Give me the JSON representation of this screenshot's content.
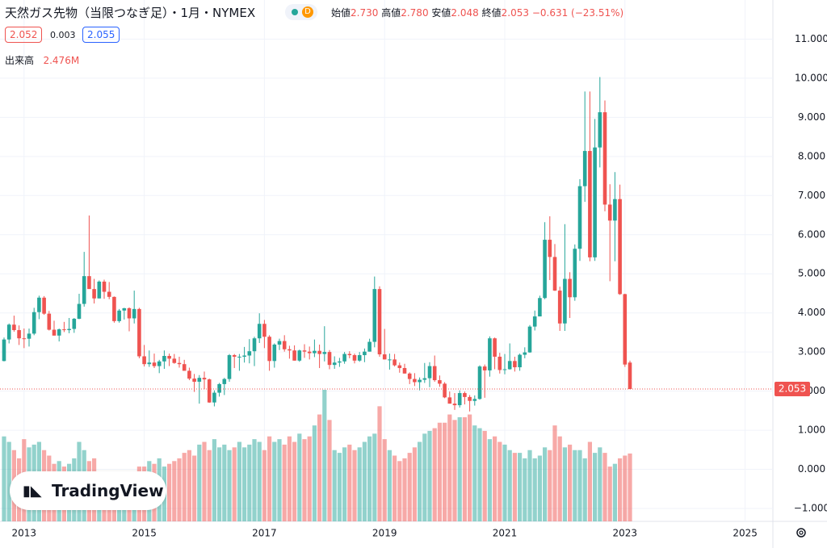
{
  "header": {
    "title": "天然ガス先物（当限つなぎ足）・1月・NYMEX",
    "interval_badge": "D",
    "open_label": "始値",
    "open": "2.730",
    "high_label": "高値",
    "high": "2.780",
    "low_label": "安値",
    "low": "2.048",
    "close_label": "終値",
    "close": "2.053",
    "change": "−0.631 (−23.51%)",
    "sell": "2.052",
    "spread": "0.003",
    "buy": "2.055",
    "volume_label": "出来高",
    "volume_value": "2.476M",
    "logo": "TradingView"
  },
  "chart_data": {
    "type": "candlestick",
    "up_color": "#26a69a",
    "down_color": "#ef5350",
    "grid": true,
    "categories": [
      null,
      null,
      null,
      null,
      "2013",
      null,
      null,
      null,
      null,
      null,
      null,
      null,
      null,
      null,
      null,
      null,
      null,
      null,
      null,
      null,
      null,
      null,
      null,
      null,
      null,
      null,
      null,
      null,
      "2015",
      null,
      null,
      null,
      null,
      null,
      null,
      null,
      null,
      null,
      null,
      null,
      null,
      null,
      null,
      null,
      null,
      null,
      null,
      null,
      null,
      null,
      null,
      null,
      "2017",
      null,
      null,
      null,
      null,
      null,
      null,
      null,
      null,
      null,
      null,
      null,
      null,
      null,
      null,
      null,
      null,
      null,
      null,
      null,
      null,
      null,
      null,
      null,
      "2019",
      null,
      null,
      null,
      null,
      null,
      null,
      null,
      null,
      null,
      null,
      null,
      null,
      null,
      null,
      null,
      null,
      null,
      null,
      null,
      null,
      null,
      null,
      null,
      "2021",
      null,
      null,
      null,
      null,
      null,
      null,
      null,
      null,
      null,
      null,
      null,
      null,
      null,
      null,
      null,
      null,
      null,
      null,
      null,
      null,
      null,
      null,
      null,
      "2023",
      null,
      null,
      null,
      null,
      null,
      null,
      null,
      null,
      null,
      null,
      null,
      null,
      null,
      null,
      null,
      null,
      null,
      null,
      null,
      null,
      null,
      null,
      null,
      "2025",
      null,
      null,
      null,
      null,
      null
    ],
    "open": [
      2.77,
      3.32,
      3.7,
      3.56,
      3.35,
      3.34,
      3.47,
      4.02,
      4.39,
      3.98,
      3.57,
      3.42,
      3.58,
      3.56,
      3.59,
      3.85,
      4.23,
      4.94,
      4.61,
      4.37,
      4.8,
      4.54,
      4.41,
      3.79,
      4.06,
      4.12,
      3.86,
      4.1,
      2.89,
      2.69,
      2.73,
      2.64,
      2.76,
      2.9,
      2.83,
      2.72,
      2.69,
      2.52,
      2.32,
      2.24,
      2.34,
      2.3,
      1.71,
      1.96,
      2.18,
      2.31,
      2.92,
      2.88,
      2.88,
      2.91,
      3.02,
      3.35,
      3.72,
      3.39,
      2.77,
      3.19,
      3.28,
      3.07,
      3.04,
      2.78,
      3.04,
      3.01,
      2.97,
      3.03,
      2.95,
      3.0,
      2.67,
      2.73,
      2.76,
      2.95,
      2.92,
      2.78,
      2.92,
      3.01,
      3.26,
      4.61,
      2.94,
      2.81,
      2.81,
      2.66,
      2.59,
      2.45,
      2.31,
      2.23,
      2.29,
      2.33,
      2.64,
      2.28,
      2.19,
      1.84,
      1.68,
      1.64,
      1.95,
      1.85,
      1.75,
      1.8,
      2.63,
      2.53,
      3.35,
      2.88,
      2.54,
      2.56,
      2.77,
      2.61,
      2.93,
      2.99,
      3.65,
      3.91,
      4.38,
      5.87,
      5.43,
      4.57,
      3.73,
      4.87,
      4.4,
      5.64,
      7.24,
      8.14,
      5.42,
      8.23,
      9.13,
      6.77,
      6.36,
      6.91,
      4.48,
      2.73,
      null,
      null,
      null,
      null,
      null,
      null,
      null,
      null,
      null,
      null,
      null,
      null,
      null,
      null,
      null,
      null,
      null,
      null,
      null,
      null,
      null,
      null,
      null,
      null,
      null,
      null,
      null,
      null
    ],
    "high": [
      3.37,
      3.73,
      3.93,
      3.68,
      3.6,
      3.6,
      4.13,
      4.44,
      4.43,
      4.05,
      3.8,
      3.6,
      3.77,
      3.87,
      3.87,
      4.49,
      5.56,
      6.49,
      4.87,
      4.83,
      4.85,
      4.79,
      4.42,
      4.1,
      4.13,
      4.14,
      4.57,
      4.13,
      3.18,
      3.04,
      2.96,
      2.8,
      3.04,
      2.96,
      2.95,
      2.88,
      2.8,
      2.6,
      2.44,
      2.41,
      2.5,
      2.32,
      2.02,
      2.21,
      2.34,
      2.95,
      2.95,
      2.95,
      3.13,
      3.33,
      3.39,
      3.99,
      3.82,
      3.43,
      3.22,
      3.34,
      3.43,
      3.16,
      3.17,
      3.06,
      3.2,
      3.14,
      3.32,
      3.19,
      3.66,
      3.05,
      2.89,
      2.85,
      3.0,
      3.02,
      2.96,
      3.0,
      3.09,
      3.34,
      4.93,
      4.68,
      3.59,
      2.96,
      2.95,
      2.73,
      2.7,
      2.48,
      2.46,
      2.35,
      2.72,
      2.74,
      2.91,
      2.4,
      2.23,
      1.99,
      1.95,
      2.02,
      1.99,
      1.9,
      1.89,
      2.66,
      2.68,
      3.4,
      3.37,
      2.98,
      2.95,
      3.22,
      2.88,
      2.96,
      3.12,
      3.69,
      4.06,
      4.44,
      6.32,
      6.47,
      5.76,
      4.67,
      6.27,
      5.04,
      5.75,
      7.42,
      9.66,
      9.66,
      8.96,
      10.03,
      9.43,
      7.29,
      7.6,
      7.28,
      4.49,
      2.78,
      null,
      null,
      null,
      null,
      null,
      null,
      null,
      null,
      null,
      null,
      null,
      null,
      null,
      null,
      null,
      null,
      null,
      null,
      null,
      null,
      null,
      null,
      null,
      null,
      null,
      null,
      null,
      null
    ],
    "low": [
      2.76,
      3.22,
      3.52,
      3.18,
      3.1,
      3.14,
      3.43,
      3.84,
      3.95,
      3.55,
      3.42,
      3.27,
      3.51,
      3.48,
      3.49,
      3.84,
      4.16,
      4.67,
      4.24,
      4.37,
      4.36,
      4.35,
      3.75,
      3.75,
      3.83,
      3.53,
      3.73,
      2.84,
      2.63,
      2.62,
      2.59,
      2.46,
      2.57,
      2.64,
      2.7,
      2.6,
      2.52,
      2.28,
      1.98,
      1.68,
      2.05,
      1.7,
      1.61,
      1.86,
      1.9,
      2.24,
      2.59,
      2.52,
      2.73,
      2.71,
      2.64,
      3.23,
      3.1,
      2.52,
      2.6,
      3.05,
      3.01,
      2.83,
      2.78,
      2.75,
      2.85,
      2.81,
      2.87,
      2.59,
      2.76,
      2.56,
      2.57,
      2.62,
      2.7,
      2.84,
      2.71,
      2.75,
      2.74,
      3.01,
      3.12,
      2.88,
      2.81,
      2.55,
      2.63,
      2.47,
      2.45,
      2.18,
      2.13,
      2.02,
      2.21,
      2.1,
      2.24,
      2.11,
      1.82,
      1.68,
      1.52,
      1.58,
      1.66,
      1.48,
      1.63,
      1.78,
      1.83,
      2.37,
      2.56,
      2.45,
      2.43,
      2.55,
      2.5,
      2.52,
      2.84,
      2.98,
      3.55,
      3.91,
      4.35,
      4.84,
      4.56,
      3.54,
      3.54,
      3.87,
      4.31,
      5.33,
      6.84,
      5.32,
      5.33,
      7.72,
      6.6,
      4.81,
      5.32,
      4.46,
      2.62,
      2.048,
      null,
      null,
      null,
      null,
      null,
      null,
      null,
      null,
      null,
      null,
      null,
      null,
      null,
      null,
      null,
      null,
      null,
      null,
      null,
      null,
      null,
      null,
      null,
      null,
      null,
      null,
      null,
      null
    ],
    "close": [
      3.32,
      3.7,
      3.56,
      3.35,
      3.34,
      3.47,
      4.02,
      4.39,
      3.98,
      3.57,
      3.42,
      3.58,
      3.56,
      3.59,
      3.85,
      4.23,
      4.94,
      4.61,
      4.37,
      4.8,
      4.54,
      4.41,
      3.79,
      4.06,
      4.12,
      3.86,
      4.1,
      2.89,
      2.69,
      2.73,
      2.64,
      2.76,
      2.9,
      2.83,
      2.72,
      2.69,
      2.52,
      2.32,
      2.24,
      2.34,
      2.3,
      1.71,
      1.96,
      2.18,
      2.31,
      2.92,
      2.88,
      2.88,
      2.91,
      3.02,
      3.35,
      3.72,
      3.39,
      2.77,
      3.19,
      3.28,
      3.07,
      3.04,
      2.78,
      3.04,
      3.01,
      2.97,
      3.03,
      2.95,
      3.0,
      2.67,
      2.73,
      2.76,
      2.95,
      2.92,
      2.78,
      2.92,
      3.01,
      3.26,
      4.61,
      2.94,
      2.81,
      2.81,
      2.66,
      2.59,
      2.45,
      2.31,
      2.23,
      2.29,
      2.33,
      2.64,
      2.28,
      2.19,
      1.84,
      1.68,
      1.64,
      1.95,
      1.85,
      1.75,
      1.8,
      2.63,
      2.53,
      3.35,
      2.88,
      2.54,
      2.56,
      2.77,
      2.61,
      2.93,
      2.99,
      3.65,
      3.91,
      4.38,
      5.87,
      5.43,
      4.57,
      3.73,
      4.87,
      4.4,
      5.64,
      7.24,
      8.14,
      5.42,
      8.23,
      9.13,
      6.77,
      6.36,
      6.91,
      4.48,
      2.68,
      2.053,
      null,
      null,
      null,
      null,
      null,
      null,
      null,
      null,
      null,
      null,
      null,
      null,
      null,
      null,
      null,
      null,
      null,
      null,
      null,
      null,
      null,
      null,
      null,
      null,
      null,
      null,
      null,
      null
    ],
    "volume": [
      3.1,
      2.9,
      2.6,
      2.3,
      3.0,
      2.7,
      2.8,
      2.9,
      2.6,
      2.4,
      2.1,
      2.2,
      2.0,
      2.1,
      2.3,
      2.9,
      2.6,
      2.2,
      2.3,
      1.7,
      1.6,
      1.7,
      1.7,
      1.5,
      1.6,
      1.8,
      1.7,
      2.0,
      2.0,
      2.2,
      2.1,
      2.3,
      2.0,
      2.1,
      2.2,
      2.3,
      2.5,
      2.6,
      2.4,
      2.8,
      2.9,
      2.6,
      3.0,
      2.7,
      2.8,
      2.6,
      2.7,
      2.9,
      2.7,
      2.8,
      3.0,
      2.9,
      2.6,
      3.1,
      2.9,
      3.0,
      2.8,
      3.1,
      2.9,
      3.2,
      3.0,
      3.1,
      3.5,
      3.9,
      4.8,
      3.7,
      2.6,
      2.5,
      2.7,
      2.8,
      2.6,
      2.7,
      2.9,
      3.1,
      3.2,
      4.2,
      3.0,
      2.6,
      2.4,
      2.2,
      2.3,
      2.5,
      2.7,
      2.9,
      3.2,
      3.3,
      3.4,
      3.6,
      3.6,
      3.9,
      3.7,
      3.8,
      3.8,
      3.9,
      3.5,
      3.4,
      3.3,
      3.0,
      3.1,
      2.9,
      2.8,
      2.6,
      2.5,
      2.5,
      2.3,
      2.6,
      2.3,
      2.4,
      2.7,
      2.6,
      3.5,
      3.1,
      2.7,
      2.8,
      2.6,
      2.6,
      2.3,
      2.9,
      2.5,
      2.7,
      2.5,
      2.0,
      2.1,
      2.3,
      2.4,
      2.476,
      null,
      null,
      null,
      null,
      null,
      null,
      null,
      null,
      null,
      null,
      null,
      null,
      null,
      null,
      null,
      null,
      null,
      null,
      null,
      null,
      null,
      null,
      null,
      null,
      null,
      null,
      null,
      null
    ],
    "ylim": [
      -1.33,
      12.0
    ],
    "yticks": [
      {
        "value": -1,
        "label": "−1.000"
      },
      {
        "value": 0,
        "label": "0.000"
      },
      {
        "value": 1,
        "label": "1.000"
      },
      {
        "value": 2,
        "label": "2.000"
      },
      {
        "value": 3,
        "label": "3.000"
      },
      {
        "value": 4,
        "label": "4.000"
      },
      {
        "value": 5,
        "label": "5.000"
      },
      {
        "value": 6,
        "label": "6.000"
      },
      {
        "value": 7,
        "label": "7.000"
      },
      {
        "value": 8,
        "label": "8.000"
      },
      {
        "value": 9,
        "label": "9.000"
      },
      {
        "value": 10,
        "label": "10.000"
      },
      {
        "value": 11,
        "label": "11.000"
      }
    ],
    "last_price": {
      "value": 2.053,
      "label": "2.053"
    }
  }
}
